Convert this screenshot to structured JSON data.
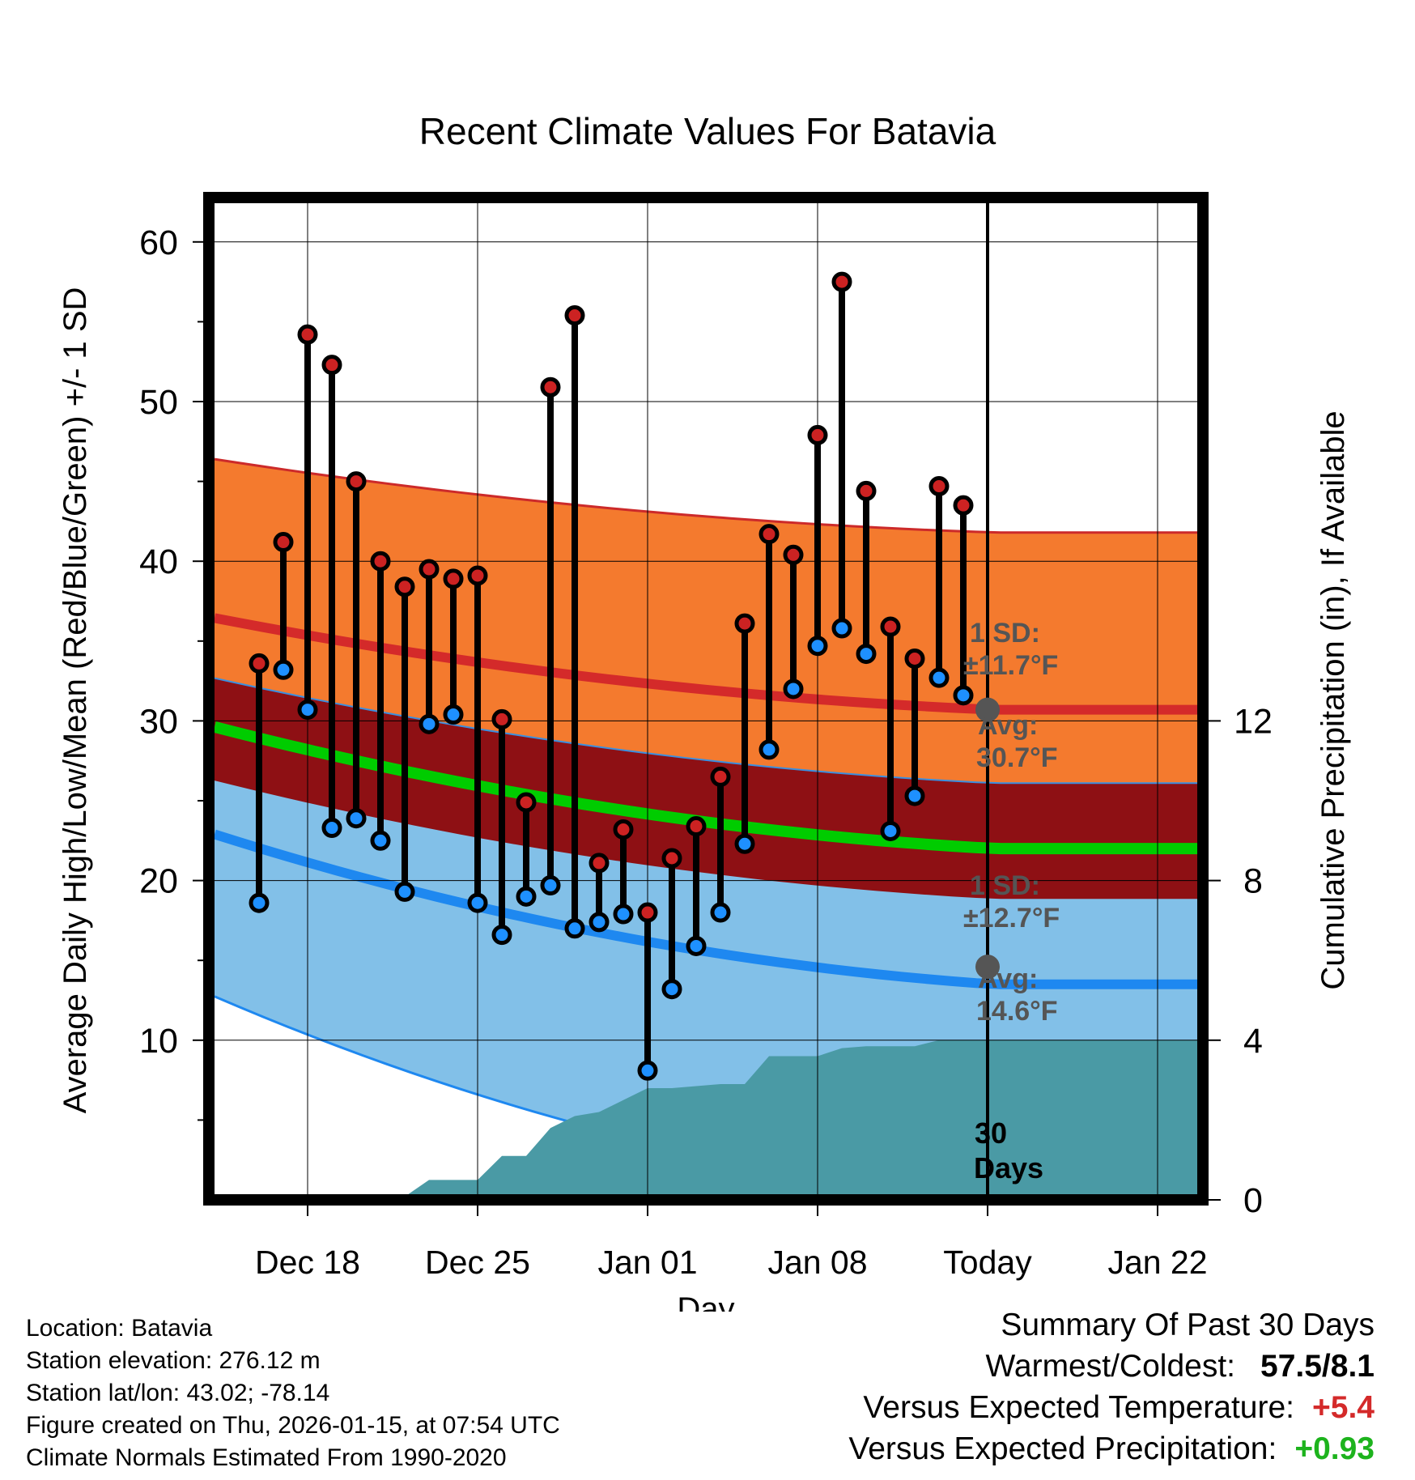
{
  "chart_data": {
    "type": "line",
    "title": "Recent Climate Values For Batavia",
    "xlabel": "Day",
    "ylabel": "Average Daily High/Low/Mean (Red/Blue/Green) +/- 1 SD",
    "y2label": "Cumulative Precipitation (in), If Available",
    "x_tick_labels": [
      "Dec 18",
      "Dec 25",
      "Jan 01",
      "Jan 08",
      "Today",
      "Jan 22"
    ],
    "x_tick_days": [
      3,
      10,
      17,
      24,
      31,
      38
    ],
    "xlim_days": [
      0,
      40
    ],
    "ylim": [
      0,
      63
    ],
    "y_ticks": [
      10,
      20,
      30,
      40,
      50,
      60
    ],
    "y2lim": [
      0,
      18
    ],
    "y2_ticks": [
      0,
      4,
      8,
      12
    ],
    "today_day": 31,
    "today_label_line1": "30",
    "today_label_line2": "Days",
    "normals": {
      "high_mean_start": 36.2,
      "high_mean_end": 30.7,
      "high_upper_start": 46.2,
      "high_upper_end": 41.8,
      "high_lower_start": 32.4,
      "high_lower_end": 26.1,
      "mean_start": 29.3,
      "mean_end": 22.0,
      "low_mean_start": 22.5,
      "low_mean_end": 13.5,
      "low_upper_start": 26.0,
      "low_upper_end": 18.9,
      "low_lower_start": 12.2,
      "low_lower_end": 0
    },
    "annotations": {
      "high_sd_label": "1 SD:",
      "high_sd_value": "±11.7°F",
      "high_avg_label": "Avg:",
      "high_avg_value": "30.7°F",
      "high_avg": 30.7,
      "low_sd_label": "1 SD:",
      "low_sd_value": "±12.7°F",
      "low_avg_label": "Avg:",
      "low_avg_value": "14.6°F",
      "low_avg": 14.6
    },
    "series": [
      {
        "name": "Daily High",
        "color": "#cc2222",
        "days": [
          1,
          2,
          3,
          4,
          5,
          6,
          7,
          8,
          9,
          10,
          11,
          12,
          13,
          14,
          15,
          16,
          17,
          18,
          19,
          20,
          21,
          22,
          23,
          24,
          25,
          26,
          27,
          28,
          29,
          30
        ],
        "values": [
          33.6,
          41.2,
          54.2,
          52.3,
          45.0,
          40.0,
          38.4,
          39.5,
          38.9,
          39.1,
          30.1,
          24.9,
          50.9,
          55.4,
          21.1,
          23.2,
          18.0,
          21.4,
          23.4,
          26.5,
          36.1,
          41.7,
          40.4,
          47.9,
          57.5,
          44.4,
          35.9,
          33.9,
          44.7,
          43.5
        ]
      },
      {
        "name": "Daily Low",
        "color": "#1e90ff",
        "days": [
          1,
          2,
          3,
          4,
          5,
          6,
          7,
          8,
          9,
          10,
          11,
          12,
          13,
          14,
          15,
          16,
          17,
          18,
          19,
          20,
          21,
          22,
          23,
          24,
          25,
          26,
          27,
          28,
          29,
          30
        ],
        "values": [
          18.6,
          33.2,
          30.7,
          23.3,
          23.9,
          22.5,
          19.3,
          29.8,
          30.4,
          18.6,
          16.6,
          19.0,
          19.7,
          17.0,
          17.4,
          17.9,
          8.1,
          13.2,
          15.9,
          18.0,
          22.3,
          28.2,
          32.0,
          34.7,
          35.8,
          34.2,
          23.1,
          25.3,
          32.7,
          31.6
        ]
      },
      {
        "name": "Cumulative Precipitation",
        "color": "#4a9aa5",
        "days": [
          0,
          3,
          4,
          7,
          8,
          10,
          11,
          12,
          13,
          14,
          15,
          16,
          17,
          18,
          19,
          20,
          21,
          22,
          23,
          24,
          25,
          26,
          27,
          28,
          29,
          30,
          40
        ],
        "values": [
          0,
          0,
          0.08,
          0.08,
          0.5,
          0.5,
          1.1,
          1.1,
          1.8,
          2.1,
          2.2,
          2.5,
          2.8,
          2.8,
          2.85,
          2.9,
          2.9,
          3.6,
          3.6,
          3.6,
          3.8,
          3.85,
          3.85,
          3.85,
          4.0,
          4.0,
          4.0
        ]
      }
    ]
  },
  "info": {
    "location": "Location: Batavia",
    "elevation": "Station elevation: 276.12 m",
    "latlon": "Station lat/lon: 43.02; -78.14",
    "created": "Figure created on Thu, 2026-01-15, at 07:54 UTC",
    "normals": "Climate Normals Estimated From 1990-2020"
  },
  "summary": {
    "title": "Summary Of Past 30 Days",
    "warmest_label": "Warmest/Coldest:",
    "warmest_value": "57.5/8.1",
    "temp_label": "Versus Expected Temperature:",
    "temp_value": "+5.4",
    "precip_label": "Versus Expected Precipitation:",
    "precip_value": "+0.93"
  }
}
